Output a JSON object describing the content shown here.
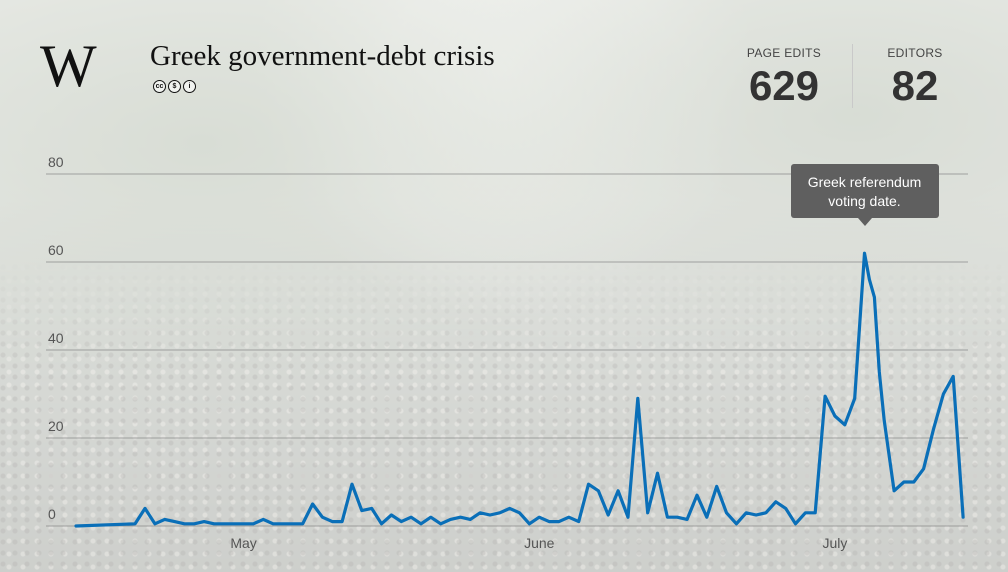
{
  "header": {
    "logo": "W",
    "title": "Greek government-debt crisis",
    "license_icons": [
      "cc-icon",
      "noncommercial-icon",
      "attribution-icon"
    ],
    "license_glyphs": [
      "cc",
      "$",
      "i"
    ]
  },
  "stats": {
    "edits_label": "PAGE EDITS",
    "edits_value": "629",
    "editors_label": "EDITORS",
    "editors_value": "82"
  },
  "annotation": {
    "text": "Greek referendum voting date.",
    "x": 74
  },
  "colors": {
    "line": "#0a6fb8",
    "grid": "#8a8a8a",
    "tooltip": "#5f5f5f"
  },
  "chart_data": {
    "type": "line",
    "title": "",
    "xlabel": "",
    "ylabel": "",
    "ylim": [
      0,
      80
    ],
    "xlim": [
      0,
      88
    ],
    "y_ticks": [
      0,
      20,
      40,
      60,
      80
    ],
    "x_ticks": [
      {
        "label": "May",
        "x": 17
      },
      {
        "label": "June",
        "x": 47
      },
      {
        "label": "July",
        "x": 77
      }
    ],
    "grid": true,
    "series": [
      {
        "values": [
          [
            0,
            0
          ],
          [
            6,
            0.5
          ],
          [
            7,
            4
          ],
          [
            8,
            0.5
          ],
          [
            9,
            1.5
          ],
          [
            10,
            1
          ],
          [
            11,
            0.5
          ],
          [
            12,
            0.5
          ],
          [
            13,
            1
          ],
          [
            14,
            0.5
          ],
          [
            15,
            0.5
          ],
          [
            16,
            0.5
          ],
          [
            17,
            0.5
          ],
          [
            18,
            0.5
          ],
          [
            19,
            1.5
          ],
          [
            20,
            0.5
          ],
          [
            21,
            0.5
          ],
          [
            22,
            0.5
          ],
          [
            23,
            0.5
          ],
          [
            24,
            5
          ],
          [
            25,
            2
          ],
          [
            26,
            1
          ],
          [
            27,
            1
          ],
          [
            28,
            9.5
          ],
          [
            29,
            3.5
          ],
          [
            30,
            4
          ],
          [
            31,
            0.5
          ],
          [
            32,
            2.5
          ],
          [
            33,
            1
          ],
          [
            34,
            2
          ],
          [
            35,
            0.5
          ],
          [
            36,
            2
          ],
          [
            37,
            0.5
          ],
          [
            38,
            1.5
          ],
          [
            39,
            2
          ],
          [
            40,
            1.5
          ],
          [
            41,
            3
          ],
          [
            42,
            2.5
          ],
          [
            43,
            3
          ],
          [
            44,
            4
          ],
          [
            45,
            3
          ],
          [
            46,
            0.5
          ],
          [
            47,
            2
          ],
          [
            48,
            1
          ],
          [
            49,
            1
          ],
          [
            50,
            2
          ],
          [
            51,
            1
          ],
          [
            52,
            9.5
          ],
          [
            53,
            8
          ],
          [
            54,
            2.5
          ],
          [
            55,
            8
          ],
          [
            56,
            2
          ],
          [
            57,
            29
          ],
          [
            58,
            3
          ],
          [
            59,
            12
          ],
          [
            60,
            2
          ],
          [
            61,
            2
          ],
          [
            62,
            1.5
          ],
          [
            63,
            7
          ],
          [
            64,
            2
          ],
          [
            65,
            9
          ],
          [
            66,
            3
          ],
          [
            67,
            0.5
          ],
          [
            68,
            3
          ],
          [
            69,
            2.5
          ],
          [
            70,
            3
          ],
          [
            71,
            5.5
          ],
          [
            72,
            4
          ],
          [
            73,
            0.5
          ],
          [
            74,
            3
          ],
          [
            75,
            3
          ],
          [
            76,
            29.5
          ],
          [
            77,
            25
          ],
          [
            78,
            23
          ],
          [
            79,
            29
          ],
          [
            80,
            62
          ],
          [
            80.5,
            56
          ],
          [
            81,
            52
          ],
          [
            81.5,
            35
          ],
          [
            82,
            24
          ],
          [
            83,
            8
          ],
          [
            84,
            10
          ],
          [
            85,
            10
          ],
          [
            86,
            13
          ],
          [
            87,
            22
          ],
          [
            88,
            30
          ],
          [
            89,
            34
          ],
          [
            90,
            2
          ]
        ]
      }
    ]
  }
}
